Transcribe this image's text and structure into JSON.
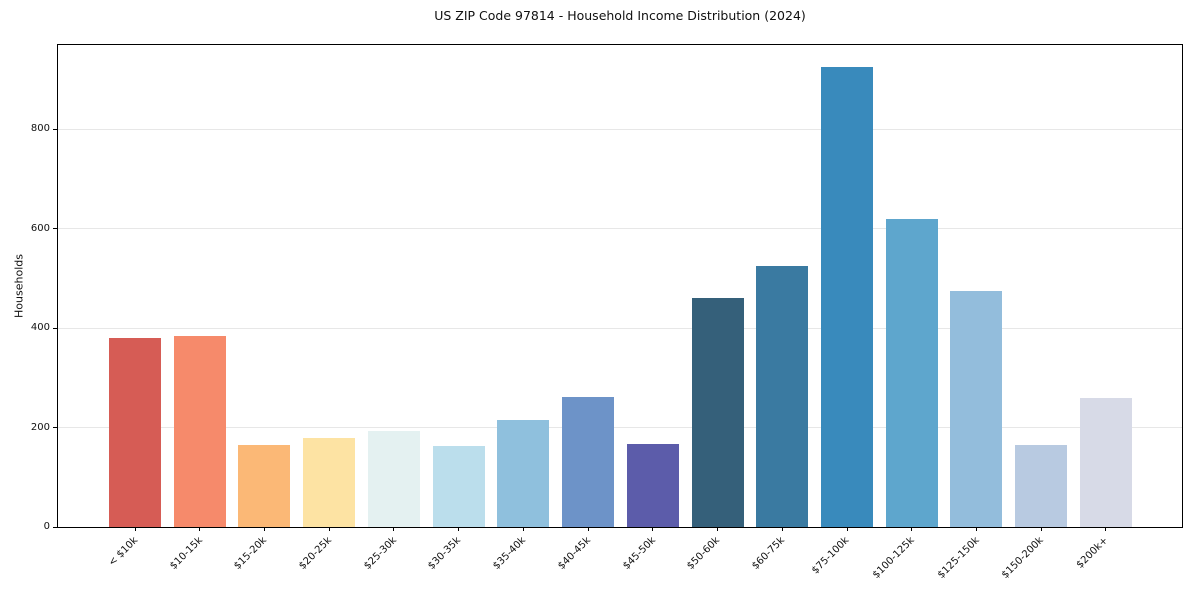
{
  "chart_data": {
    "type": "bar",
    "title": "US ZIP Code 97814 - Household Income Distribution (2024)",
    "xlabel": "",
    "ylabel": "Households",
    "categories": [
      "< $10k",
      "$10-15k",
      "$15-20k",
      "$20-25k",
      "$25-30k",
      "$30-35k",
      "$35-40k",
      "$40-45k",
      "$45-50k",
      "$50-60k",
      "$60-75k",
      "$75-100k",
      "$100-125k",
      "$125-150k",
      "$150-200k",
      "$200k+"
    ],
    "values": [
      380,
      385,
      165,
      180,
      193,
      163,
      215,
      262,
      167,
      460,
      525,
      925,
      620,
      475,
      166,
      260
    ],
    "bar_colors": [
      "#d65c55",
      "#f68a6b",
      "#fbb876",
      "#fde3a3",
      "#e4f1f1",
      "#bbdeec",
      "#8fc0dd",
      "#6d93c8",
      "#5c5caa",
      "#35607a",
      "#3a7aa1",
      "#398abc",
      "#5ea6cd",
      "#93bddc",
      "#b8cae1",
      "#d7dae7"
    ],
    "yticks": [
      0,
      200,
      400,
      600,
      800
    ],
    "ylim": [
      0,
      970
    ],
    "x_tick_rotation": 45,
    "grid": "horizontal",
    "gridline_color": "#e7e7e7",
    "spine_color": "#000000",
    "background": "#ffffff",
    "legend": "none"
  }
}
